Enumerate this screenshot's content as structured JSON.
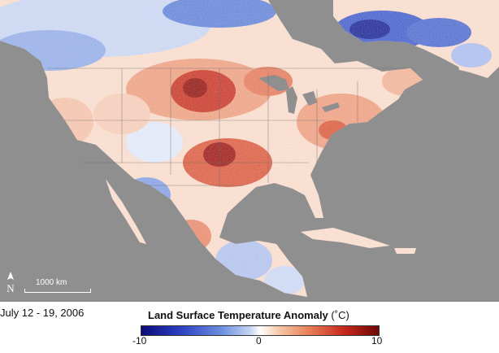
{
  "map": {
    "title": "Land Surface Temperature Anomaly",
    "unit": "(˚C)",
    "date_range": "July 12 - 19, 2006",
    "scale_label": "1000 km",
    "north_label": "N"
  },
  "legend": {
    "ticks": [
      "-10",
      "0",
      "10"
    ],
    "colors": {
      "cold_extreme": "#0b0b78",
      "cold": "#2a3fc0",
      "neutral": "#ffffff",
      "warm": "#e9825a",
      "hot_extreme": "#6e0808",
      "ocean": "#8f8f8f"
    }
  }
}
